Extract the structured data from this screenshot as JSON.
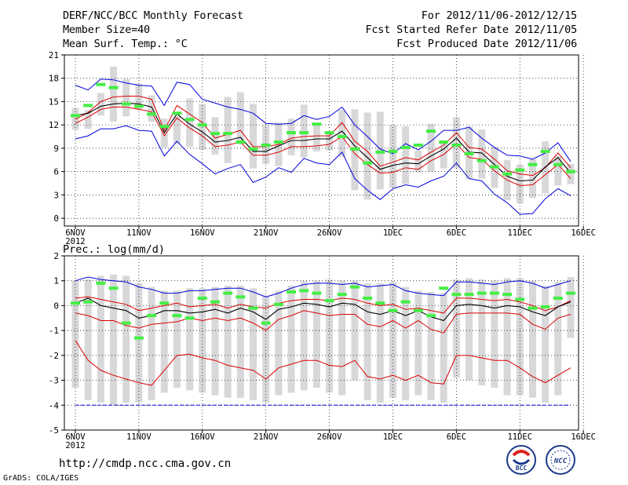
{
  "header": {
    "title": "DERF/NCC/BCC Monthly Forecast",
    "member": "Member Size=40",
    "variable1": "Mean Surf. Temp.: °C",
    "period": "For 2012/11/06-2012/12/15",
    "started": "Fcst Started Refer Date 2012/11/05",
    "produced": "Fcst Produced Date 2012/11/06"
  },
  "footer": {
    "url": "http://cmdp.ncc.cma.gov.cn",
    "grads": "GrADS: COLA/IGES",
    "logo1": "BCC",
    "logo2": "NCC"
  },
  "colors": {
    "mean": "#000000",
    "spread": "#dd0000",
    "envelope": "#0000dd",
    "box": "#d8d8da",
    "marker": "#44ee44",
    "grid": "#000000"
  },
  "chart_data": [
    {
      "type": "line",
      "title": "Mean Surf. Temp.: °C",
      "x_ticks": [
        "6NOV",
        "11NOV",
        "16NOV",
        "21NOV",
        "26NOV",
        "1DEC",
        "6DEC",
        "11DEC",
        "16DEC"
      ],
      "x_year": "2012",
      "ylim": [
        -1,
        21
      ],
      "y_ticks": [
        0,
        3,
        6,
        9,
        12,
        15,
        18,
        21
      ],
      "days": 40,
      "series": [
        {
          "name": "max",
          "values": [
            17.1,
            16.5,
            17.9,
            17.8,
            17.4,
            17.1,
            17.0,
            14.5,
            17.5,
            17.2,
            15.3,
            14.8,
            14.3,
            14.0,
            13.5,
            12.2,
            12.1,
            12.2,
            13.2,
            12.7,
            13.1,
            14.3,
            12.0,
            10.5,
            8.9,
            8.3,
            9.6,
            8.8,
            9.9,
            11.3,
            11.3,
            11.7,
            10.3,
            9.1,
            8.1,
            8.0,
            7.6,
            8.4,
            9.7,
            7.3
          ]
        },
        {
          "name": "upper",
          "values": [
            12.7,
            13.6,
            15.0,
            15.6,
            15.7,
            15.7,
            15.3,
            11.3,
            14.5,
            13.4,
            12.3,
            10.3,
            10.8,
            11.3,
            9.2,
            9.2,
            9.5,
            10.3,
            10.5,
            10.6,
            10.6,
            12.3,
            9.9,
            8.6,
            6.7,
            7.2,
            7.8,
            7.5,
            8.5,
            9.4,
            11.0,
            9.1,
            8.9,
            7.6,
            6.1,
            5.7,
            5.5,
            6.5,
            8.4,
            6.5
          ]
        },
        {
          "name": "mean",
          "values": [
            13.2,
            13.5,
            14.4,
            14.7,
            14.8,
            14.7,
            14.3,
            11.0,
            13.4,
            12.1,
            11.1,
            9.8,
            10.0,
            10.4,
            8.6,
            8.6,
            9.3,
            10.0,
            10.0,
            10.2,
            10.2,
            11.2,
            9.3,
            7.8,
            6.3,
            6.8,
            7.1,
            7.0,
            8.0,
            8.9,
            10.3,
            8.5,
            8.4,
            6.9,
            5.4,
            4.8,
            4.9,
            6.6,
            7.8,
            5.8
          ]
        },
        {
          "name": "lower",
          "values": [
            12.2,
            13.0,
            14.0,
            14.3,
            14.3,
            14.0,
            13.7,
            10.6,
            12.9,
            11.6,
            10.6,
            9.2,
            9.4,
            9.8,
            8.1,
            8.1,
            8.5,
            9.2,
            9.2,
            9.3,
            9.5,
            10.5,
            8.3,
            6.9,
            5.8,
            5.9,
            6.5,
            6.3,
            7.4,
            8.2,
            9.6,
            7.8,
            7.6,
            6.1,
            4.9,
            4.2,
            4.3,
            5.6,
            6.9,
            5.1
          ]
        },
        {
          "name": "min",
          "values": [
            10.2,
            10.6,
            11.5,
            11.5,
            11.9,
            11.3,
            11.2,
            8.0,
            9.9,
            8.2,
            7.0,
            5.7,
            6.4,
            6.9,
            4.6,
            5.3,
            6.5,
            5.9,
            7.7,
            7.1,
            6.9,
            8.5,
            5.1,
            3.6,
            2.4,
            3.8,
            4.3,
            4.0,
            4.8,
            5.4,
            7.1,
            5.1,
            4.8,
            3.1,
            2.0,
            0.5,
            0.6,
            2.5,
            3.8,
            2.9
          ]
        },
        {
          "name": "box_top",
          "values": [
            14.2,
            13.9,
            16.1,
            19.5,
            17.9,
            17.3,
            15.8,
            12.8,
            13.1,
            15.4,
            14.7,
            13.0,
            15.6,
            16.2,
            14.7,
            12.0,
            12.3,
            12.8,
            14.6,
            12.1,
            11.1,
            13.9,
            14.0,
            13.6,
            13.7,
            12.0,
            11.8,
            8.7,
            12.1,
            9.9,
            13.0,
            11.8,
            11.4,
            9.2,
            7.5,
            6.9,
            7.6,
            9.9,
            8.0,
            7.0
          ]
        },
        {
          "name": "box_bottom",
          "values": [
            11.4,
            11.5,
            13.2,
            12.4,
            13.1,
            14.0,
            12.4,
            9.1,
            9.6,
            9.2,
            8.8,
            8.2,
            7.1,
            9.5,
            6.4,
            7.0,
            6.7,
            8.1,
            7.8,
            8.6,
            8.7,
            7.9,
            3.6,
            2.4,
            3.7,
            3.9,
            4.4,
            5.9,
            6.0,
            6.4,
            6.4,
            5.0,
            5.1,
            3.9,
            2.3,
            1.9,
            2.6,
            3.2,
            4.2,
            4.4
          ]
        },
        {
          "name": "marker",
          "values": [
            13.2,
            14.5,
            17.2,
            16.8,
            14.7,
            14.4,
            13.4,
            11.8,
            13.5,
            12.7,
            12.0,
            10.9,
            10.9,
            9.8,
            8.9,
            9.4,
            9.8,
            11.0,
            11.0,
            12.1,
            11.0,
            10.5,
            8.9,
            7.1,
            8.5,
            8.6,
            9.1,
            9.4,
            11.2,
            9.8,
            9.4,
            8.3,
            7.4,
            6.6,
            5.7,
            6.2,
            6.9,
            8.6,
            6.9,
            6.0
          ]
        }
      ]
    },
    {
      "type": "line",
      "title": "Prec.: log(mm/d)",
      "x_ticks": [
        "6NOV",
        "11NOV",
        "16NOV",
        "21NOV",
        "26NOV",
        "1DEC",
        "6DEC",
        "11DEC",
        "16DEC"
      ],
      "x_year": "2012",
      "ylim": [
        -5,
        2
      ],
      "y_ticks": [
        -5,
        -4,
        -3,
        -2,
        -1,
        0,
        1,
        2
      ],
      "days": 40,
      "series": [
        {
          "name": "max",
          "values": [
            1.0,
            1.15,
            1.05,
            1.0,
            0.95,
            0.75,
            0.65,
            0.5,
            0.5,
            0.6,
            0.6,
            0.65,
            0.7,
            0.7,
            0.55,
            0.35,
            0.5,
            0.7,
            0.85,
            0.9,
            0.9,
            0.85,
            0.9,
            0.75,
            0.8,
            0.85,
            0.6,
            0.5,
            0.45,
            0.4,
            0.95,
            0.95,
            0.9,
            0.85,
            0.95,
            1.0,
            0.9,
            0.7,
            0.85,
            1.0
          ]
        },
        {
          "name": "upper",
          "values": [
            0.3,
            0.35,
            0.25,
            0.15,
            0.05,
            -0.2,
            -0.1,
            0.0,
            0.1,
            -0.05,
            0.0,
            0.05,
            -0.1,
            0.05,
            -0.05,
            -0.1,
            0.1,
            0.2,
            0.25,
            0.25,
            0.2,
            0.3,
            0.25,
            0.1,
            0.0,
            0.05,
            -0.15,
            -0.1,
            -0.2,
            -0.3,
            0.3,
            0.3,
            0.25,
            0.2,
            0.25,
            0.15,
            0.0,
            -0.2,
            -0.05,
            0.2
          ]
        },
        {
          "name": "mean",
          "values": [
            0.1,
            0.3,
            0.0,
            -0.1,
            -0.2,
            -0.5,
            -0.4,
            -0.2,
            -0.2,
            -0.3,
            -0.25,
            -0.15,
            -0.3,
            -0.1,
            -0.25,
            -0.55,
            -0.15,
            -0.05,
            0.1,
            0.05,
            -0.05,
            0.1,
            0.05,
            -0.25,
            -0.35,
            -0.2,
            -0.4,
            -0.2,
            -0.45,
            -0.6,
            0.0,
            0.05,
            0.0,
            -0.1,
            0.0,
            -0.05,
            -0.25,
            -0.4,
            -0.05,
            0.15
          ]
        },
        {
          "name": "lower",
          "values": [
            -0.3,
            -0.4,
            -0.6,
            -0.6,
            -0.8,
            -0.9,
            -0.75,
            -0.7,
            -0.65,
            -0.5,
            -0.6,
            -0.5,
            -0.6,
            -0.5,
            -0.7,
            -1.0,
            -0.55,
            -0.4,
            -0.2,
            -0.3,
            -0.4,
            -0.35,
            -0.35,
            -0.75,
            -0.85,
            -0.6,
            -0.9,
            -0.6,
            -0.95,
            -1.1,
            -0.35,
            -0.3,
            -0.3,
            -0.3,
            -0.3,
            -0.35,
            -0.75,
            -0.95,
            -0.5,
            -0.35
          ]
        },
        {
          "name": "min",
          "values": [
            -1.4,
            -2.2,
            -2.6,
            -2.8,
            -2.95,
            -3.1,
            -3.2,
            -2.6,
            -2.0,
            -1.95,
            -2.1,
            -2.2,
            -2.4,
            -2.5,
            -2.6,
            -2.95,
            -2.5,
            -2.35,
            -2.2,
            -2.2,
            -2.4,
            -2.45,
            -2.2,
            -2.85,
            -2.95,
            -2.8,
            -3.0,
            -2.8,
            -3.1,
            -3.15,
            -2.0,
            -2.0,
            -2.1,
            -2.2,
            -2.2,
            -2.5,
            -2.85,
            -3.1,
            -2.8,
            -2.5
          ]
        },
        {
          "name": "floor",
          "values": [
            -4.0,
            -4.0,
            -4.0,
            -4.0,
            -4.0,
            -4.0,
            -4.0,
            -4.0,
            -4.0,
            -4.0,
            -4.0,
            -4.0,
            -4.0,
            -4.0,
            -4.0,
            -4.0,
            -4.0,
            -4.0,
            -4.0,
            -4.0,
            -4.0,
            -4.0,
            -4.0,
            -4.0,
            -4.0,
            -4.0,
            -4.0,
            -4.0,
            -4.0,
            -4.0,
            -4.0,
            -4.0,
            -4.0,
            -4.0,
            -4.0,
            -4.0,
            -4.0,
            -4.0,
            -4.0,
            -4.0
          ]
        },
        {
          "name": "box_top",
          "values": [
            1.0,
            1.05,
            1.2,
            1.25,
            1.2,
            0.9,
            0.75,
            0.6,
            0.6,
            0.7,
            0.7,
            0.75,
            0.8,
            0.8,
            0.7,
            0.4,
            0.6,
            0.8,
            1.0,
            1.0,
            1.05,
            1.0,
            1.0,
            0.9,
            0.9,
            0.95,
            0.75,
            0.6,
            0.55,
            0.5,
            1.05,
            1.1,
            1.05,
            1.0,
            1.1,
            1.1,
            1.0,
            0.8,
            0.95,
            1.15
          ]
        },
        {
          "name": "box_bottom",
          "values": [
            -3.3,
            -3.8,
            -3.9,
            -4.0,
            -3.9,
            -3.9,
            -3.8,
            -3.5,
            -3.3,
            -3.4,
            -3.5,
            -3.6,
            -3.7,
            -3.7,
            -3.8,
            -3.9,
            -3.6,
            -3.5,
            -3.4,
            -3.3,
            -3.5,
            -3.6,
            -3.0,
            -3.8,
            -3.9,
            -3.7,
            -3.8,
            -3.6,
            -3.8,
            -3.9,
            -2.9,
            -3.0,
            -3.2,
            -3.3,
            -3.6,
            -3.6,
            -3.7,
            -3.9,
            -3.6,
            -1.3
          ]
        },
        {
          "name": "marker",
          "values": [
            0.1,
            0.15,
            0.9,
            0.7,
            -0.7,
            -1.3,
            -0.4,
            0.1,
            -0.4,
            -0.5,
            0.3,
            0.15,
            0.5,
            0.35,
            -0.1,
            -0.7,
            0.05,
            0.55,
            0.6,
            0.5,
            0.2,
            0.45,
            0.75,
            0.3,
            0.1,
            -0.2,
            0.15,
            -0.2,
            -0.4,
            0.7,
            0.45,
            0.45,
            0.5,
            0.5,
            0.45,
            0.25,
            -0.1,
            -0.05,
            0.3,
            0.5
          ]
        }
      ]
    }
  ]
}
